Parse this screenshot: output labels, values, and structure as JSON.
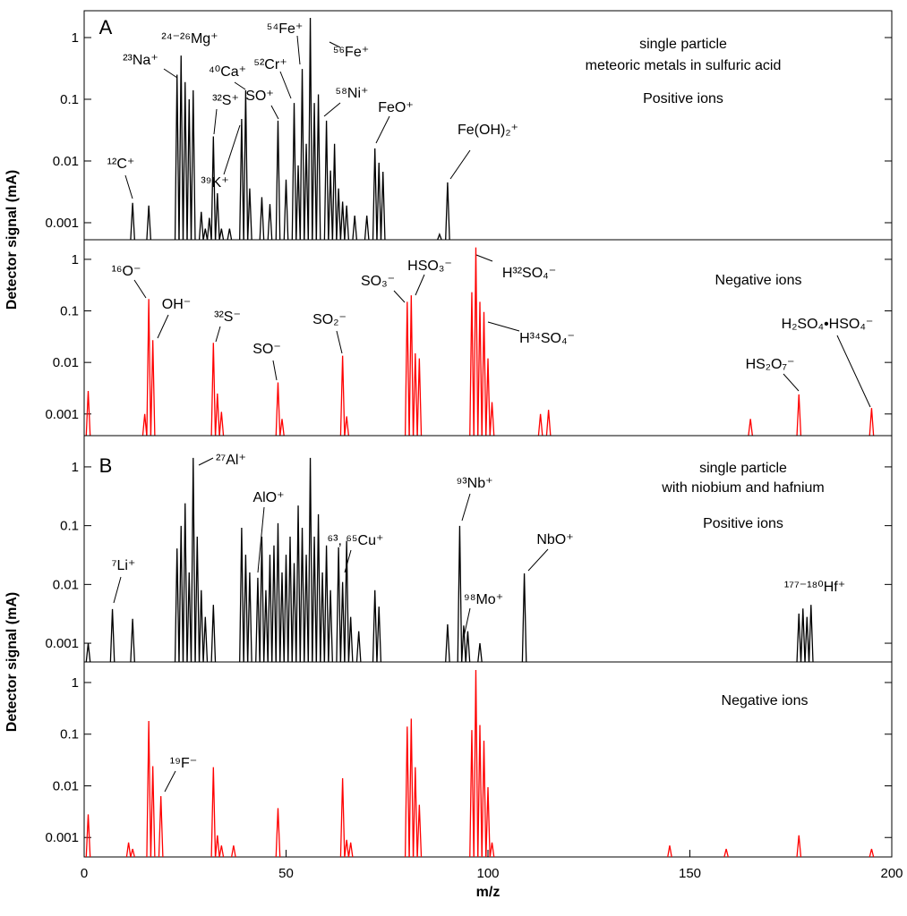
{
  "chart_data": [
    {
      "type": "spectrum",
      "title": "A",
      "color": "#000000",
      "labels": [
        "single particle",
        "meteoric metals in sulfuric acid",
        "Positive ions"
      ],
      "ylabel": "Detector signal (mA)",
      "annotations": [
        "¹²C⁺",
        "²³Na⁺",
        "²⁴⁻²⁶Mg⁺",
        "⁴⁰Ca⁺",
        "³²S⁺",
        "³⁹K⁺",
        "SO⁺",
        "⁵²Cr⁺",
        "⁵⁴Fe⁺",
        "⁵⁶Fe⁺",
        "⁵⁸Ni⁺",
        "FeO⁺",
        "Fe(OH)₂⁺"
      ],
      "xlim": [
        0,
        200
      ],
      "ylim": [
        0.00053,
        2.72
      ],
      "log_y": true,
      "yticks": [
        0.001,
        0.01,
        0.1,
        1
      ],
      "x": [
        12,
        16,
        23,
        24,
        25,
        26,
        27,
        29,
        30,
        31,
        32,
        33,
        34,
        36,
        39,
        40,
        41,
        44,
        46,
        48,
        50,
        52,
        53,
        54,
        55,
        56,
        57,
        58,
        60,
        61,
        62,
        63,
        64,
        65,
        67,
        70,
        72,
        73,
        74,
        88,
        90
      ],
      "values": [
        0.0021,
        0.0019,
        0.25,
        0.51,
        0.19,
        0.1,
        0.14,
        0.0015,
        0.0008,
        0.0012,
        0.025,
        0.003,
        0.0008,
        0.0008,
        0.048,
        0.14,
        0.0036,
        0.0026,
        0.002,
        0.045,
        0.005,
        0.087,
        0.0085,
        0.31,
        0.019,
        2.08,
        0.087,
        0.12,
        0.045,
        0.007,
        0.019,
        0.0036,
        0.0022,
        0.0019,
        0.0013,
        0.0013,
        0.016,
        0.0094,
        0.0067,
        0.00065,
        0.0045
      ]
    },
    {
      "type": "spectrum",
      "color": "#ff0000",
      "labels": [
        "Negative ions"
      ],
      "annotations": [
        "¹⁶O⁻",
        "OH⁻",
        "³²S⁻",
        "SO⁻",
        "SO₂⁻",
        "SO₃⁻",
        "HSO₃⁻",
        "H³²SO₄⁻",
        "H³⁴SO₄⁻",
        "HS₂O₇⁻",
        "H₂SO₄•HSO₄⁻"
      ],
      "xlim": [
        0,
        200
      ],
      "ylim": [
        0.00038,
        2.4
      ],
      "log_y": true,
      "yticks": [
        0.001,
        0.01,
        0.1,
        1
      ],
      "x": [
        1,
        15,
        16,
        17,
        32,
        33,
        34,
        48,
        49,
        64,
        65,
        80,
        81,
        82,
        83,
        96,
        97,
        98,
        99,
        100,
        101,
        113,
        115,
        165,
        177,
        195
      ],
      "values": [
        0.0028,
        0.001,
        0.17,
        0.027,
        0.024,
        0.0025,
        0.0011,
        0.0041,
        0.0008,
        0.0135,
        0.0009,
        0.15,
        0.2,
        0.015,
        0.012,
        0.23,
        1.7,
        0.15,
        0.095,
        0.012,
        0.0017,
        0.001,
        0.0012,
        0.0008,
        0.0024,
        0.0013
      ]
    },
    {
      "type": "spectrum",
      "title": "B",
      "color": "#000000",
      "labels": [
        "single particle",
        "with niobium and hafnium",
        "Positive ions"
      ],
      "ylabel": "Detector signal (mA)",
      "annotations": [
        "²⁷Al⁺",
        "AlO⁺",
        "⁷Li⁺",
        "⁶³, ⁶⁵Cu⁺",
        "⁹³Nb⁺",
        "⁹⁸Mo⁺",
        "NbO⁺",
        "¹⁷⁷⁻¹⁸⁰Hf⁺"
      ],
      "xlim": [
        0,
        200
      ],
      "ylim": [
        0.00048,
        3.4
      ],
      "log_y": true,
      "yticks": [
        0.001,
        0.01,
        0.1,
        1
      ],
      "x": [
        1,
        7,
        12,
        23,
        24,
        25,
        26,
        27,
        28,
        29,
        30,
        32,
        39,
        40,
        41,
        43,
        44,
        45,
        46,
        47,
        48,
        49,
        50,
        51,
        52,
        53,
        54,
        55,
        56,
        57,
        58,
        59,
        60,
        61,
        63,
        64,
        65,
        66,
        68,
        72,
        73,
        90,
        93,
        94,
        95,
        98,
        109,
        177,
        178,
        179,
        180
      ],
      "values": [
        0.001,
        0.0038,
        0.0026,
        0.041,
        0.099,
        0.24,
        0.016,
        1.42,
        0.065,
        0.008,
        0.0028,
        0.0045,
        0.092,
        0.032,
        0.016,
        0.013,
        0.065,
        0.008,
        0.032,
        0.046,
        0.11,
        0.016,
        0.032,
        0.065,
        0.023,
        0.22,
        0.092,
        0.032,
        1.42,
        0.065,
        0.156,
        0.016,
        0.046,
        0.008,
        0.043,
        0.011,
        0.055,
        0.0028,
        0.0016,
        0.008,
        0.0042,
        0.0021,
        0.099,
        0.002,
        0.0016,
        0.001,
        0.0154,
        0.0032,
        0.0039,
        0.0028,
        0.0045
      ]
    },
    {
      "type": "spectrum",
      "color": "#ff0000",
      "labels": [
        "Negative ions"
      ],
      "annotations": [
        "¹⁹F⁻"
      ],
      "xlabel": "m/z",
      "xlim": [
        0,
        200
      ],
      "ylim": [
        0.00042,
        2.5
      ],
      "log_y": true,
      "xticks": [
        0,
        50,
        100,
        150,
        200
      ],
      "yticks": [
        0.001,
        0.01,
        0.1,
        1
      ],
      "x": [
        1,
        11,
        12,
        16,
        17,
        19,
        32,
        33,
        34,
        37,
        48,
        64,
        65,
        66,
        80,
        81,
        82,
        83,
        96,
        97,
        98,
        99,
        100,
        101,
        145,
        159,
        177,
        195
      ],
      "values": [
        0.0028,
        0.0008,
        0.0006,
        0.18,
        0.024,
        0.0063,
        0.023,
        0.0011,
        0.0007,
        0.0007,
        0.0037,
        0.014,
        0.0009,
        0.0008,
        0.14,
        0.2,
        0.023,
        0.0043,
        0.12,
        1.75,
        0.15,
        0.075,
        0.0094,
        0.0008,
        0.0007,
        0.0006,
        0.0011,
        0.0006
      ]
    }
  ]
}
